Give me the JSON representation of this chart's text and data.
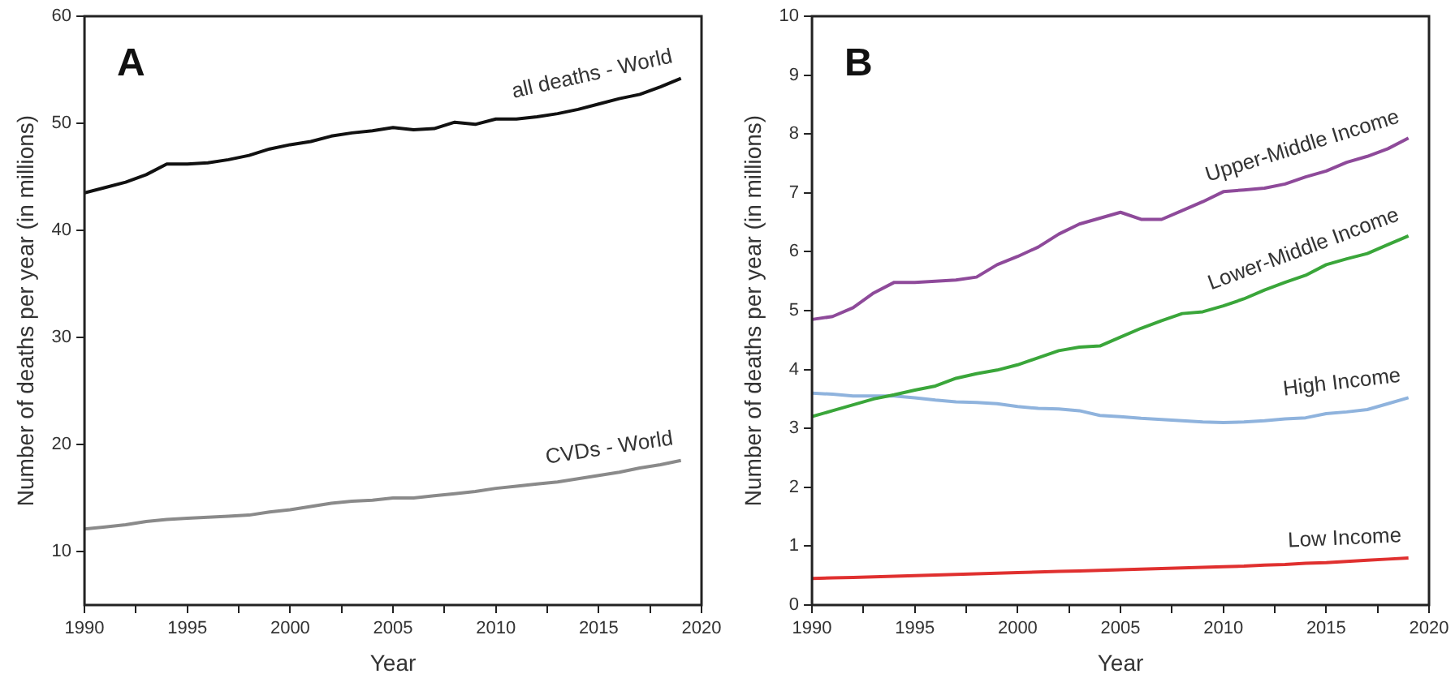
{
  "chart_data": [
    {
      "type": "line",
      "annotations": [
        "A"
      ],
      "xlabel": "Year",
      "ylabel": "Number of deaths per year (in millions)",
      "grid": false,
      "legend": false,
      "marker": "none",
      "line_style": "solid",
      "x": [
        1990,
        1991,
        1992,
        1993,
        1994,
        1995,
        1996,
        1997,
        1998,
        1999,
        2000,
        2001,
        2002,
        2003,
        2004,
        2005,
        2006,
        2007,
        2008,
        2009,
        2010,
        2011,
        2012,
        2013,
        2014,
        2015,
        2016,
        2017,
        2018,
        2019
      ],
      "xlim": [
        1990,
        2020
      ],
      "xticks": [
        1990,
        {
          "value": 1992.5,
          "label": null
        },
        1995,
        {
          "value": 1997.5,
          "label": null
        },
        2000,
        {
          "value": 2002.5,
          "label": null
        },
        2005,
        {
          "value": 2007.5,
          "label": null
        },
        2010,
        {
          "value": 2012.5,
          "label": null
        },
        2015,
        {
          "value": 2017.5,
          "label": null
        },
        2020
      ],
      "ylim": [
        5,
        60
      ],
      "yticks": [
        10,
        20,
        30,
        40,
        50,
        60
      ],
      "series": [
        {
          "name": "all deaths - World",
          "color": "#111111",
          "values": [
            43.5,
            44.0,
            44.5,
            45.2,
            46.2,
            46.2,
            46.3,
            46.6,
            47.0,
            47.6,
            48.0,
            48.3,
            48.8,
            49.1,
            49.3,
            49.6,
            49.4,
            49.5,
            50.1,
            49.9,
            50.4,
            50.4,
            50.6,
            50.9,
            51.3,
            51.8,
            52.3,
            52.7,
            53.4,
            54.2
          ]
        },
        {
          "name": "CVDs - World",
          "color": "#8a8a8a",
          "values": [
            12.1,
            12.3,
            12.5,
            12.8,
            13.0,
            13.1,
            13.2,
            13.3,
            13.4,
            13.7,
            13.9,
            14.2,
            14.5,
            14.7,
            14.8,
            15.0,
            15.0,
            15.2,
            15.4,
            15.6,
            15.9,
            16.1,
            16.3,
            16.5,
            16.8,
            17.1,
            17.4,
            17.8,
            18.1,
            18.5
          ]
        }
      ]
    },
    {
      "type": "line",
      "annotations": [
        "B"
      ],
      "xlabel": "Year",
      "ylabel": "Number of deaths per year (in millions)",
      "grid": false,
      "legend": false,
      "marker": "none",
      "line_style": "solid",
      "x": [
        1990,
        1991,
        1992,
        1993,
        1994,
        1995,
        1996,
        1997,
        1998,
        1999,
        2000,
        2001,
        2002,
        2003,
        2004,
        2005,
        2006,
        2007,
        2008,
        2009,
        2010,
        2011,
        2012,
        2013,
        2014,
        2015,
        2016,
        2017,
        2018,
        2019
      ],
      "xlim": [
        1990,
        2020
      ],
      "xticks": [
        1990,
        {
          "value": 1992.5,
          "label": null
        },
        1995,
        {
          "value": 1997.5,
          "label": null
        },
        2000,
        {
          "value": 2002.5,
          "label": null
        },
        2005,
        {
          "value": 2007.5,
          "label": null
        },
        2010,
        {
          "value": 2012.5,
          "label": null
        },
        2015,
        {
          "value": 2017.5,
          "label": null
        },
        2020
      ],
      "ylim": [
        0,
        10
      ],
      "yticks": [
        0,
        1,
        2,
        3,
        4,
        5,
        6,
        7,
        8,
        9,
        10
      ],
      "series": [
        {
          "name": "Upper-Middle Income",
          "color": "#8e4a9a",
          "values": [
            4.85,
            4.9,
            5.05,
            5.3,
            5.48,
            5.48,
            5.5,
            5.52,
            5.57,
            5.78,
            5.92,
            6.08,
            6.3,
            6.47,
            6.57,
            6.67,
            6.55,
            6.55,
            6.7,
            6.85,
            7.02,
            7.05,
            7.08,
            7.15,
            7.27,
            7.37,
            7.52,
            7.62,
            7.75,
            7.93
          ]
        },
        {
          "name": "Lower-Middle Income",
          "color": "#3aa63a",
          "values": [
            3.2,
            3.3,
            3.4,
            3.5,
            3.57,
            3.65,
            3.72,
            3.85,
            3.93,
            3.99,
            4.08,
            4.2,
            4.32,
            4.38,
            4.4,
            4.55,
            4.7,
            4.83,
            4.95,
            4.98,
            5.08,
            5.2,
            5.35,
            5.48,
            5.6,
            5.78,
            5.88,
            5.97,
            6.12,
            6.27
          ]
        },
        {
          "name": "High Income",
          "color": "#8fb3dd",
          "values": [
            3.6,
            3.58,
            3.55,
            3.55,
            3.55,
            3.52,
            3.48,
            3.45,
            3.44,
            3.42,
            3.37,
            3.34,
            3.33,
            3.3,
            3.22,
            3.2,
            3.17,
            3.15,
            3.13,
            3.11,
            3.1,
            3.11,
            3.13,
            3.16,
            3.18,
            3.25,
            3.28,
            3.32,
            3.42,
            3.52
          ]
        },
        {
          "name": "Low Income",
          "color": "#e0302f",
          "values": [
            0.45,
            0.46,
            0.47,
            0.48,
            0.49,
            0.5,
            0.51,
            0.52,
            0.53,
            0.54,
            0.55,
            0.56,
            0.57,
            0.58,
            0.59,
            0.6,
            0.61,
            0.62,
            0.63,
            0.64,
            0.65,
            0.66,
            0.68,
            0.69,
            0.71,
            0.72,
            0.74,
            0.76,
            0.78,
            0.8
          ]
        }
      ]
    }
  ]
}
